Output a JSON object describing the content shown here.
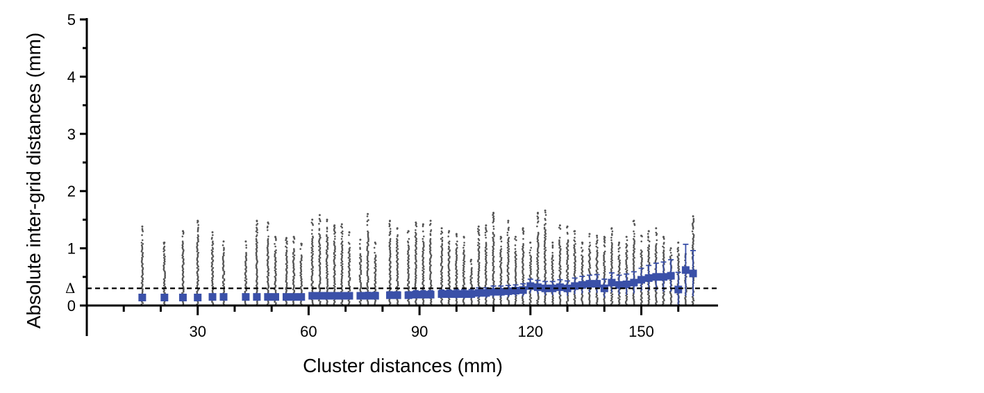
{
  "chart_data": {
    "type": "scatter",
    "xlabel": "Cluster distances (mm)",
    "ylabel": "Absolute inter-grid distances (mm)",
    "xlim": [
      0,
      170
    ],
    "ylim": [
      0,
      5
    ],
    "x_ticks": [
      30,
      60,
      90,
      120,
      150
    ],
    "y_ticks": [
      0,
      1,
      2,
      3,
      4,
      5
    ],
    "threshold": {
      "label": "Δ",
      "y": 0.3,
      "style": "dashed"
    },
    "colors": {
      "raw_points": "#555555",
      "summary": "#3a50a8",
      "axis": "#000000"
    },
    "summary": {
      "x": [
        15,
        21,
        26,
        30,
        34,
        37,
        43,
        46,
        49,
        51,
        54,
        56,
        58,
        61,
        63,
        65,
        67,
        69,
        71,
        74,
        76,
        78,
        82,
        84,
        87,
        89,
        91,
        93,
        96,
        98,
        100,
        102,
        104,
        106,
        108,
        110,
        112,
        114,
        116,
        118,
        120,
        122,
        124,
        126,
        128,
        130,
        132,
        134,
        136,
        138,
        140,
        142,
        144,
        146,
        148,
        150,
        152,
        154,
        156,
        158,
        160,
        162,
        164
      ],
      "mean": [
        0.14,
        0.14,
        0.14,
        0.14,
        0.15,
        0.15,
        0.15,
        0.15,
        0.15,
        0.15,
        0.15,
        0.15,
        0.15,
        0.17,
        0.17,
        0.17,
        0.17,
        0.17,
        0.17,
        0.17,
        0.17,
        0.17,
        0.18,
        0.18,
        0.18,
        0.19,
        0.19,
        0.19,
        0.2,
        0.2,
        0.2,
        0.2,
        0.2,
        0.22,
        0.22,
        0.24,
        0.24,
        0.25,
        0.26,
        0.27,
        0.34,
        0.32,
        0.3,
        0.3,
        0.32,
        0.3,
        0.34,
        0.36,
        0.38,
        0.38,
        0.3,
        0.4,
        0.36,
        0.37,
        0.4,
        0.45,
        0.48,
        0.5,
        0.5,
        0.52,
        0.28,
        0.62,
        0.56
      ],
      "err": [
        0.04,
        0.04,
        0.04,
        0.04,
        0.04,
        0.04,
        0.04,
        0.05,
        0.05,
        0.05,
        0.05,
        0.05,
        0.05,
        0.05,
        0.05,
        0.05,
        0.05,
        0.05,
        0.05,
        0.05,
        0.06,
        0.06,
        0.06,
        0.06,
        0.06,
        0.07,
        0.07,
        0.07,
        0.07,
        0.07,
        0.08,
        0.08,
        0.08,
        0.09,
        0.09,
        0.1,
        0.1,
        0.1,
        0.1,
        0.11,
        0.12,
        0.12,
        0.12,
        0.12,
        0.13,
        0.13,
        0.14,
        0.15,
        0.15,
        0.16,
        0.16,
        0.17,
        0.17,
        0.18,
        0.19,
        0.2,
        0.22,
        0.24,
        0.26,
        0.28,
        0.3,
        0.45,
        0.4
      ],
      "max": [
        1.38,
        1.1,
        1.3,
        1.48,
        1.28,
        1.12,
        1.12,
        1.48,
        1.45,
        1.2,
        1.18,
        1.2,
        1.08,
        1.5,
        1.58,
        1.5,
        1.4,
        1.42,
        1.28,
        1.15,
        1.6,
        1.1,
        1.48,
        1.35,
        1.3,
        1.45,
        1.42,
        1.48,
        1.35,
        1.3,
        1.25,
        1.2,
        0.8,
        1.38,
        1.4,
        1.62,
        1.2,
        1.48,
        1.2,
        1.35,
        1.1,
        1.62,
        1.66,
        1.1,
        1.4,
        1.38,
        1.3,
        1.1,
        1.25,
        1.22,
        1.2,
        1.35,
        1.1,
        1.2,
        1.48,
        1.22,
        1.3,
        1.35,
        1.2,
        1.0,
        1.1,
        0.9,
        1.56
      ]
    }
  }
}
